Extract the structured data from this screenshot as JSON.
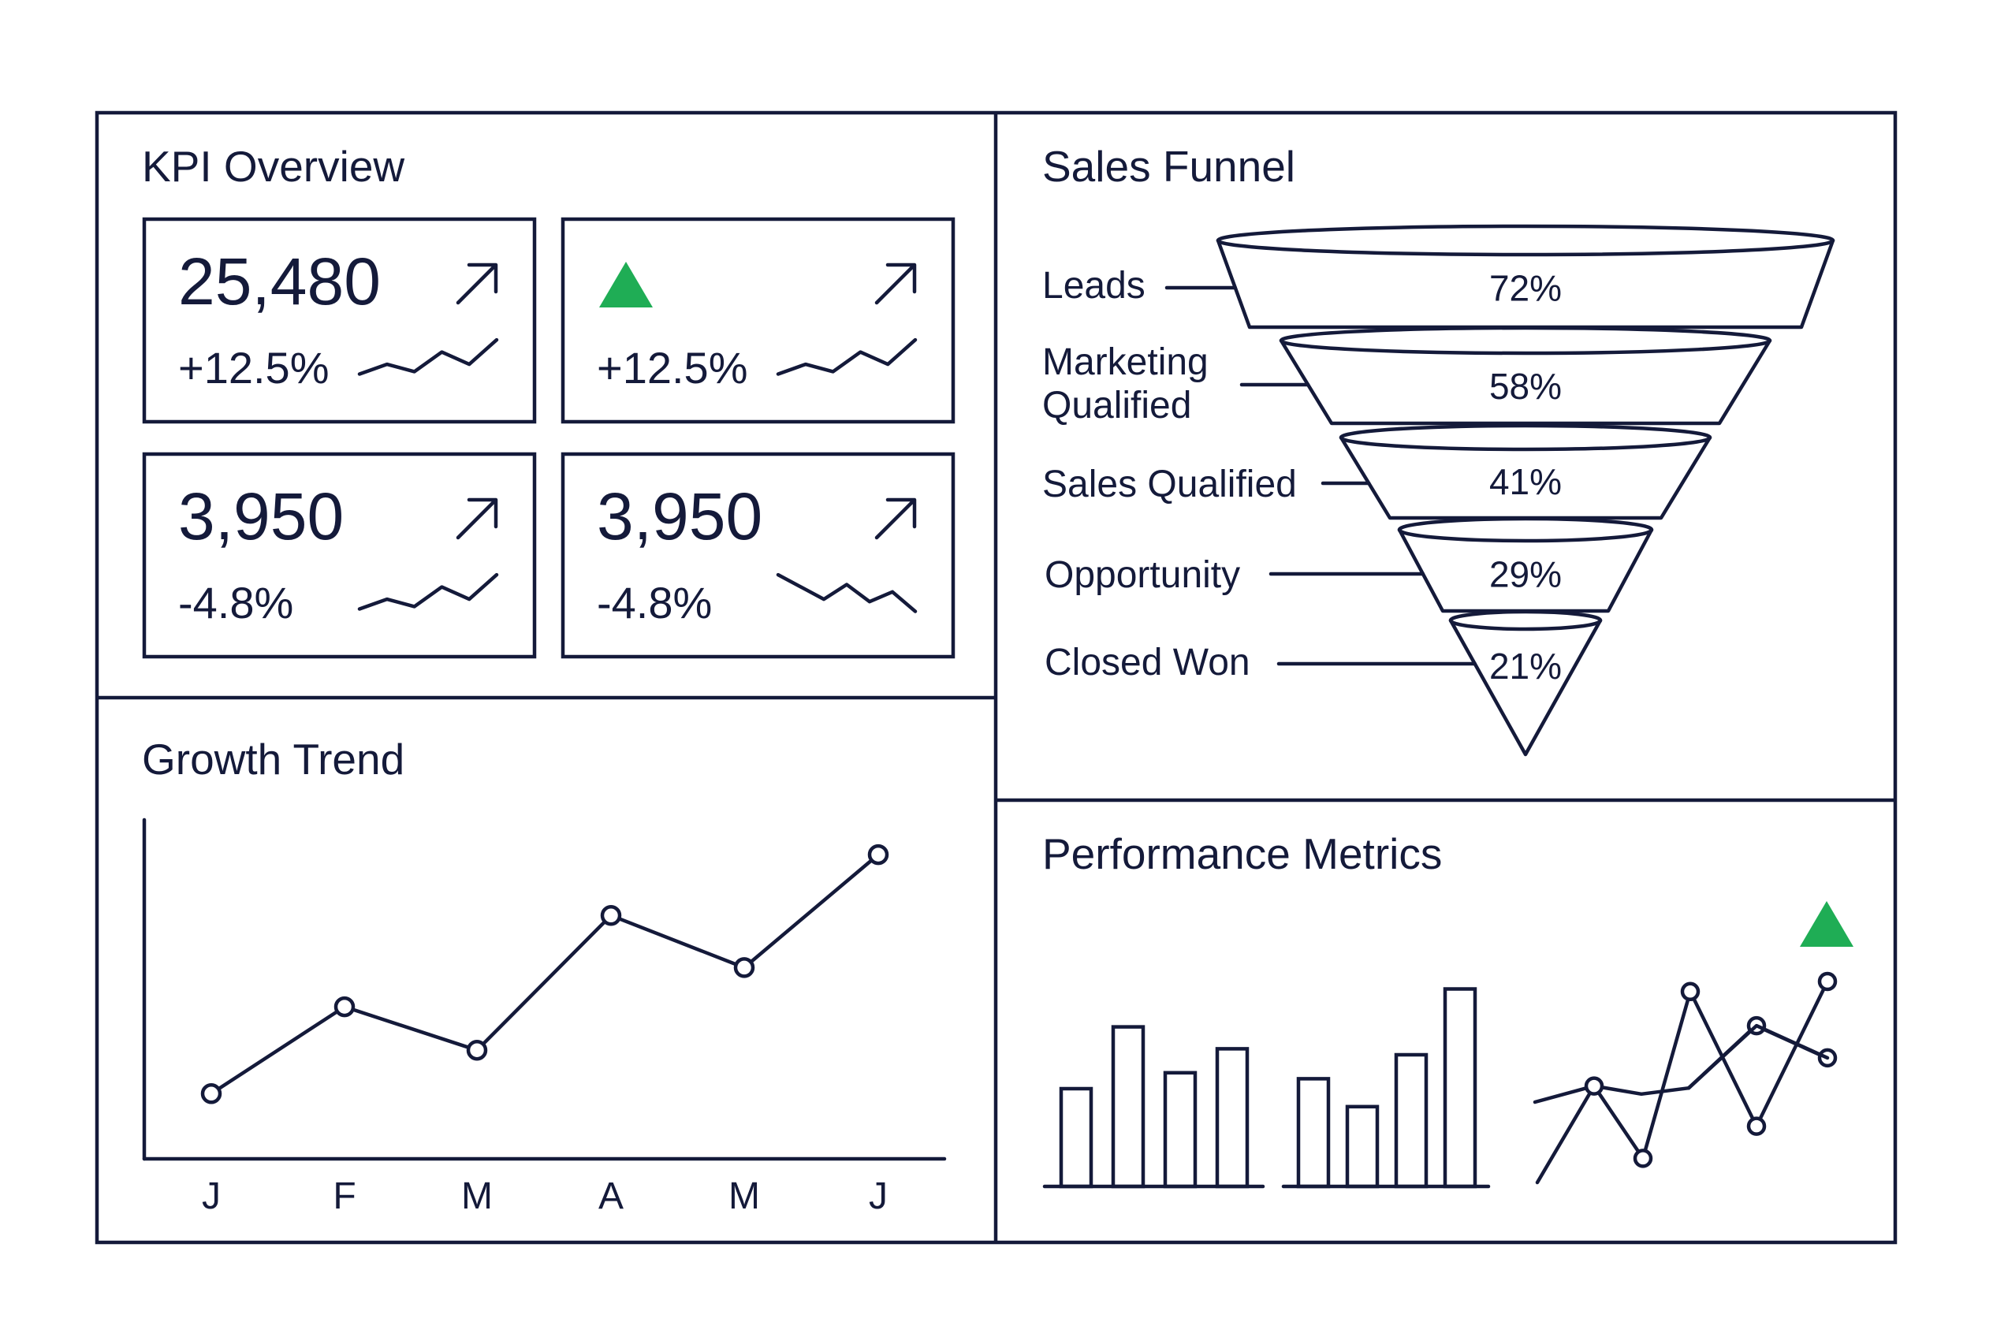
{
  "colors": {
    "ink": "#141a3a",
    "accent_green": "#1fad55",
    "background": "#ffffff"
  },
  "kpi": {
    "title": "KPI Overview",
    "cards": [
      {
        "value": "25,480",
        "delta": "+12.5%",
        "delta_color": "ink",
        "icon": "arrow-up-right-icon",
        "marker": "",
        "sparkline": [
          0.25,
          0.45,
          0.3,
          0.7,
          0.45,
          0.95
        ]
      },
      {
        "value": "",
        "delta": "+12.5%",
        "delta_color": "green",
        "icon": "arrow-up-right-icon",
        "marker": "triangle-up-icon",
        "sparkline": [
          0.25,
          0.45,
          0.3,
          0.7,
          0.45,
          0.95
        ]
      },
      {
        "value": "3,950",
        "delta": "-4.8%",
        "delta_color": "ink",
        "icon": "arrow-up-right-icon",
        "marker": "",
        "sparkline": [
          0.25,
          0.45,
          0.3,
          0.7,
          0.45,
          0.95
        ]
      },
      {
        "value": "3,950",
        "delta": "-4.8%",
        "delta_color": "ink",
        "icon": "arrow-up-right-icon",
        "marker": "",
        "sparkline": [
          0.95,
          0.7,
          0.45,
          0.75,
          0.4,
          0.6,
          0.2
        ]
      }
    ]
  },
  "funnel": {
    "title": "Sales Funnel",
    "stages": [
      {
        "label": [
          "Leads"
        ],
        "percent": "72%"
      },
      {
        "label": [
          "Marketing",
          "Qualified"
        ],
        "percent": "58%"
      },
      {
        "label": [
          "Sales Qualified"
        ],
        "percent": "41%"
      },
      {
        "label": [
          "Opportunity"
        ],
        "percent": "29%"
      },
      {
        "label": [
          "Closed Won"
        ],
        "percent": "21%"
      }
    ]
  },
  "chart_data": [
    {
      "type": "line",
      "title": "Growth Trend",
      "categories": [
        "J",
        "F",
        "M",
        "A",
        "M",
        "J"
      ],
      "values": [
        15,
        35,
        25,
        56,
        44,
        70
      ],
      "ylim": [
        0,
        78
      ],
      "markers": true,
      "grid": false
    },
    {
      "type": "bar",
      "title": "Performance Metrics",
      "groups": [
        {
          "values": [
            0.49,
            0.8,
            0.57,
            0.69
          ]
        },
        {
          "values": [
            0.54,
            0.4,
            0.66,
            0.99
          ]
        }
      ],
      "ylim": [
        0,
        1
      ]
    },
    {
      "type": "line",
      "title": "Performance Metrics",
      "marker": "triangle-up-icon",
      "series": [
        {
          "values": [
            0.4,
            0.48,
            0.44,
            0.47,
            0.78,
            0.62
          ]
        },
        {
          "values": [
            0.0,
            0.48,
            0.12,
            0.95,
            0.28,
            0.82,
            1.0
          ]
        }
      ]
    }
  ]
}
